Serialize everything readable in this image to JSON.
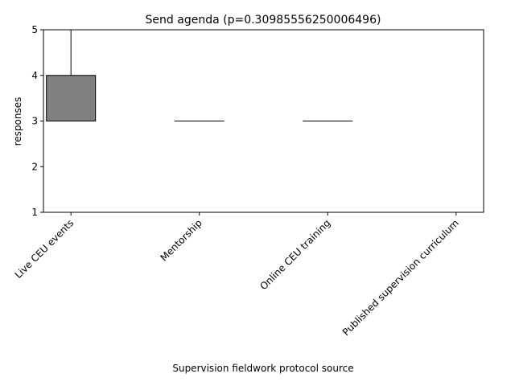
{
  "chart_data": {
    "type": "box",
    "title": "Send agenda (p=0.30985556250006496)",
    "xlabel": "Supervision fieldwork protocol source",
    "ylabel": "responses",
    "ylim": [
      1,
      5
    ],
    "yticks": [
      "1",
      "2",
      "3",
      "4",
      "5"
    ],
    "grid": false,
    "box_color": "#808080",
    "categories": [
      "Live CEU events",
      "Mentorship",
      "Online CEU training",
      "Published supervision curriculum"
    ],
    "boxes": [
      {
        "whisker_low": 3,
        "q1": 3,
        "median": 3,
        "q3": 4,
        "whisker_high": 5
      },
      {
        "whisker_low": 3,
        "q1": 3,
        "median": 3,
        "q3": 3,
        "whisker_high": 3
      },
      {
        "whisker_low": 3,
        "q1": 3,
        "median": 3,
        "q3": 3,
        "whisker_high": 3
      },
      {
        "whisker_low": 5,
        "q1": 5,
        "median": 5,
        "q3": 5,
        "whisker_high": 5
      }
    ]
  }
}
